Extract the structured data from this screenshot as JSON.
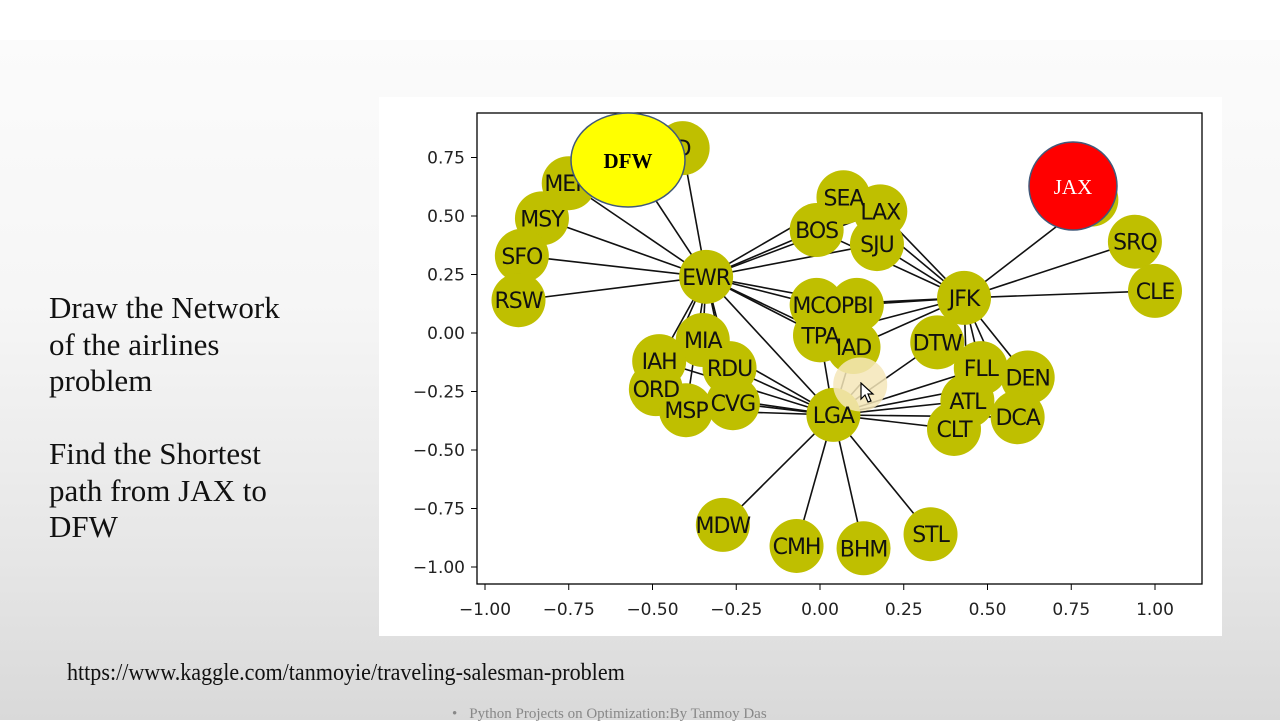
{
  "slide": {
    "heading_lines": [
      "Draw the Network",
      "of the airlines",
      "problem"
    ],
    "task_lines": [
      "Find the Shortest",
      "path from JAX to",
      "DFW"
    ],
    "url": "https://www.kaggle.com/tanmoyie/traveling-salesman-problem",
    "footer": "Python Projects on Optimization:By Tanmoy Das",
    "footer_bullet": "•"
  },
  "colors": {
    "node": "#bfbf00",
    "edge": "#111111",
    "dfw_highlight": "#ffff00",
    "jax_highlight": "#ff0000",
    "highlight_border": "#41597a",
    "hovered_node": "#f5e6b8"
  },
  "chart_data": {
    "type": "network",
    "title": "",
    "xlabel": "",
    "ylabel": "",
    "xlim": [
      -1.05,
      1.13
    ],
    "ylim": [
      -1.07,
      0.94
    ],
    "xticks": [
      "−1.00",
      "−0.75",
      "−0.50",
      "−0.25",
      "0.00",
      "0.25",
      "0.50",
      "0.75",
      "1.00"
    ],
    "xtick_values": [
      -1.0,
      -0.75,
      -0.5,
      -0.25,
      0.0,
      0.25,
      0.5,
      0.75,
      1.0
    ],
    "yticks": [
      "0.75",
      "0.50",
      "0.25",
      "0.00",
      "−0.25",
      "−0.50",
      "−0.75",
      "−1.00"
    ],
    "ytick_values": [
      0.75,
      0.5,
      0.25,
      0.0,
      -0.25,
      -0.5,
      -0.75,
      -1.0
    ],
    "grid": false,
    "nodes": [
      {
        "id": "ORD_top",
        "label": "D",
        "x": -0.41,
        "y": 0.79
      },
      {
        "id": "MEM",
        "label": "MEM",
        "x": -0.75,
        "y": 0.64
      },
      {
        "id": "MSY",
        "label": "MSY",
        "x": -0.83,
        "y": 0.49
      },
      {
        "id": "SFO",
        "label": "SFO",
        "x": -0.89,
        "y": 0.33
      },
      {
        "id": "RSW",
        "label": "RSW",
        "x": -0.9,
        "y": 0.14
      },
      {
        "id": "EWR",
        "label": "EWR",
        "x": -0.34,
        "y": 0.24
      },
      {
        "id": "SEA",
        "label": "SEA",
        "x": 0.07,
        "y": 0.58
      },
      {
        "id": "LAX",
        "label": "LAX",
        "x": 0.18,
        "y": 0.52
      },
      {
        "id": "BOS",
        "label": "BOS",
        "x": -0.01,
        "y": 0.44
      },
      {
        "id": "SJU",
        "label": "SJU",
        "x": 0.17,
        "y": 0.38
      },
      {
        "id": "MCO",
        "label": "MCO",
        "x": -0.01,
        "y": 0.12
      },
      {
        "id": "PBI",
        "label": "PBI",
        "x": 0.11,
        "y": 0.12
      },
      {
        "id": "TPA",
        "label": "TPA",
        "x": 0.0,
        "y": -0.01
      },
      {
        "id": "IAD",
        "label": "IAD",
        "x": 0.1,
        "y": -0.06
      },
      {
        "id": "JFK",
        "label": "JFK",
        "x": 0.43,
        "y": 0.15
      },
      {
        "id": "DTW",
        "label": "DTW",
        "x": 0.35,
        "y": -0.04
      },
      {
        "id": "FLL",
        "label": "FLL",
        "x": 0.48,
        "y": -0.15
      },
      {
        "id": "DEN",
        "label": "DEN",
        "x": 0.62,
        "y": -0.19
      },
      {
        "id": "ATL",
        "label": "ATL",
        "x": 0.44,
        "y": -0.29
      },
      {
        "id": "DCA",
        "label": "DCA",
        "x": 0.59,
        "y": -0.36
      },
      {
        "id": "CLT",
        "label": "CLT",
        "x": 0.4,
        "y": -0.41
      },
      {
        "id": "SRQ",
        "label": "SRQ",
        "x": 0.94,
        "y": 0.39
      },
      {
        "id": "CLE",
        "label": "CLE",
        "x": 1.0,
        "y": 0.18
      },
      {
        "id": "JAX",
        "label": "",
        "x": 0.81,
        "y": 0.57
      },
      {
        "id": "MIA",
        "label": "MIA",
        "x": -0.35,
        "y": -0.03
      },
      {
        "id": "IAH",
        "label": "IAH",
        "x": -0.48,
        "y": -0.12
      },
      {
        "id": "RDU",
        "label": "RDU",
        "x": -0.27,
        "y": -0.15
      },
      {
        "id": "ORD",
        "label": "ORD",
        "x": -0.49,
        "y": -0.24
      },
      {
        "id": "CVG",
        "label": "CVG",
        "x": -0.26,
        "y": -0.3
      },
      {
        "id": "MSP",
        "label": "MSP",
        "x": -0.4,
        "y": -0.33
      },
      {
        "id": "LGA",
        "label": "LGA",
        "x": 0.04,
        "y": -0.35
      },
      {
        "id": "HOVER",
        "label": "",
        "x": 0.12,
        "y": -0.22,
        "hovered": true
      },
      {
        "id": "MDW",
        "label": "MDW",
        "x": -0.29,
        "y": -0.82
      },
      {
        "id": "CMH",
        "label": "CMH",
        "x": -0.07,
        "y": -0.91
      },
      {
        "id": "BHM",
        "label": "BHM",
        "x": 0.13,
        "y": -0.92
      },
      {
        "id": "STL",
        "label": "STL",
        "x": 0.33,
        "y": -0.86
      }
    ],
    "edges": [
      [
        "EWR",
        "ORD_top"
      ],
      [
        "EWR",
        "MEM"
      ],
      [
        "EWR",
        "MSY"
      ],
      [
        "EWR",
        "SFO"
      ],
      [
        "EWR",
        "RSW"
      ],
      [
        "EWR",
        "DFW_hidden"
      ],
      [
        "EWR",
        "SEA"
      ],
      [
        "EWR",
        "BOS"
      ],
      [
        "EWR",
        "SJU"
      ],
      [
        "EWR",
        "LAX"
      ],
      [
        "EWR",
        "MCO"
      ],
      [
        "EWR",
        "PBI"
      ],
      [
        "EWR",
        "TPA"
      ],
      [
        "EWR",
        "IAD"
      ],
      [
        "EWR",
        "MIA"
      ],
      [
        "EWR",
        "IAH"
      ],
      [
        "EWR",
        "ORD"
      ],
      [
        "EWR",
        "RDU"
      ],
      [
        "EWR",
        "CVG"
      ],
      [
        "EWR",
        "MSP"
      ],
      [
        "EWR",
        "LGA"
      ],
      [
        "JFK",
        "SEA"
      ],
      [
        "JFK",
        "LAX"
      ],
      [
        "JFK",
        "BOS"
      ],
      [
        "JFK",
        "SJU"
      ],
      [
        "JFK",
        "MCO"
      ],
      [
        "JFK",
        "PBI"
      ],
      [
        "JFK",
        "TPA"
      ],
      [
        "JFK",
        "IAD"
      ],
      [
        "JFK",
        "DTW"
      ],
      [
        "JFK",
        "FLL"
      ],
      [
        "JFK",
        "DEN"
      ],
      [
        "JFK",
        "ATL"
      ],
      [
        "JFK",
        "DCA"
      ],
      [
        "JFK",
        "JAX"
      ],
      [
        "JFK",
        "SRQ"
      ],
      [
        "JFK",
        "CLE"
      ],
      [
        "LGA",
        "MIA"
      ],
      [
        "LGA",
        "IAH"
      ],
      [
        "LGA",
        "RDU"
      ],
      [
        "LGA",
        "ORD"
      ],
      [
        "LGA",
        "CVG"
      ],
      [
        "LGA",
        "MSP"
      ],
      [
        "LGA",
        "TPA"
      ],
      [
        "LGA",
        "IAD"
      ],
      [
        "LGA",
        "DTW"
      ],
      [
        "LGA",
        "FLL"
      ],
      [
        "LGA",
        "ATL"
      ],
      [
        "LGA",
        "CLT"
      ],
      [
        "LGA",
        "DEN"
      ],
      [
        "LGA",
        "DCA"
      ],
      [
        "LGA",
        "MDW"
      ],
      [
        "LGA",
        "CMH"
      ],
      [
        "LGA",
        "BHM"
      ],
      [
        "LGA",
        "STL"
      ],
      [
        "LGA",
        "HOVER"
      ]
    ],
    "annotations": [
      {
        "label": "DFW",
        "shape": "ellipse",
        "x": -0.57,
        "y": 0.74,
        "fill": "#ffff00"
      },
      {
        "label": "JAX",
        "shape": "circle",
        "x": 0.76,
        "y": 0.63,
        "fill": "#ff0000"
      }
    ]
  }
}
